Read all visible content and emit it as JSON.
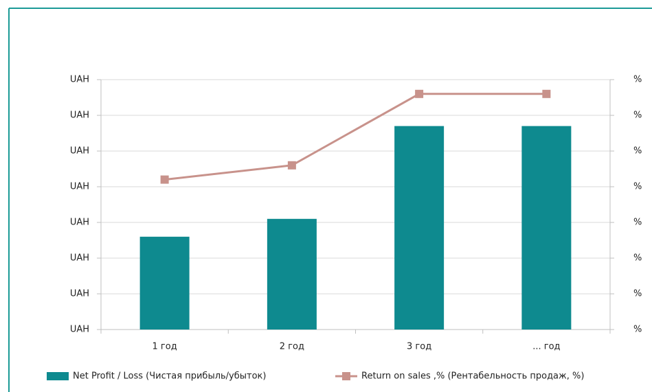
{
  "chart_data": {
    "type": "bar",
    "categories": [
      "1 год",
      "2 год",
      "3 год",
      "... год"
    ],
    "series": [
      {
        "name": "Net Profit / Loss (Чистая прибыль/убыток)",
        "type": "bar",
        "color": "#0e8a8f",
        "values": [
          2.6,
          3.1,
          5.7,
          5.7
        ]
      },
      {
        "name": "Return on sales ,% (Рентабельность продаж, %)",
        "type": "line",
        "axis": "y2",
        "color": "#c8928b",
        "values": [
          4.2,
          4.6,
          6.6,
          6.6
        ]
      }
    ],
    "ylim": [
      0,
      7
    ],
    "yticks": [
      {
        "value": 0,
        "label": "UAH"
      },
      {
        "value": 1,
        "label": "UAH"
      },
      {
        "value": 2,
        "label": "UAH"
      },
      {
        "value": 3,
        "label": "UAH"
      },
      {
        "value": 4,
        "label": "UAH"
      },
      {
        "value": 5,
        "label": "UAH"
      },
      {
        "value": 6,
        "label": "UAH"
      },
      {
        "value": 7,
        "label": "UAH"
      }
    ],
    "y2lim": [
      0,
      7
    ],
    "y2ticks": [
      {
        "value": 0,
        "label": "%"
      },
      {
        "value": 1,
        "label": "%"
      },
      {
        "value": 2,
        "label": "%"
      },
      {
        "value": 3,
        "label": "%"
      },
      {
        "value": 4,
        "label": "%"
      },
      {
        "value": 5,
        "label": "%"
      },
      {
        "value": 6,
        "label": "%"
      },
      {
        "value": 7,
        "label": "%"
      }
    ],
    "grid": true,
    "legend": "bottom"
  }
}
